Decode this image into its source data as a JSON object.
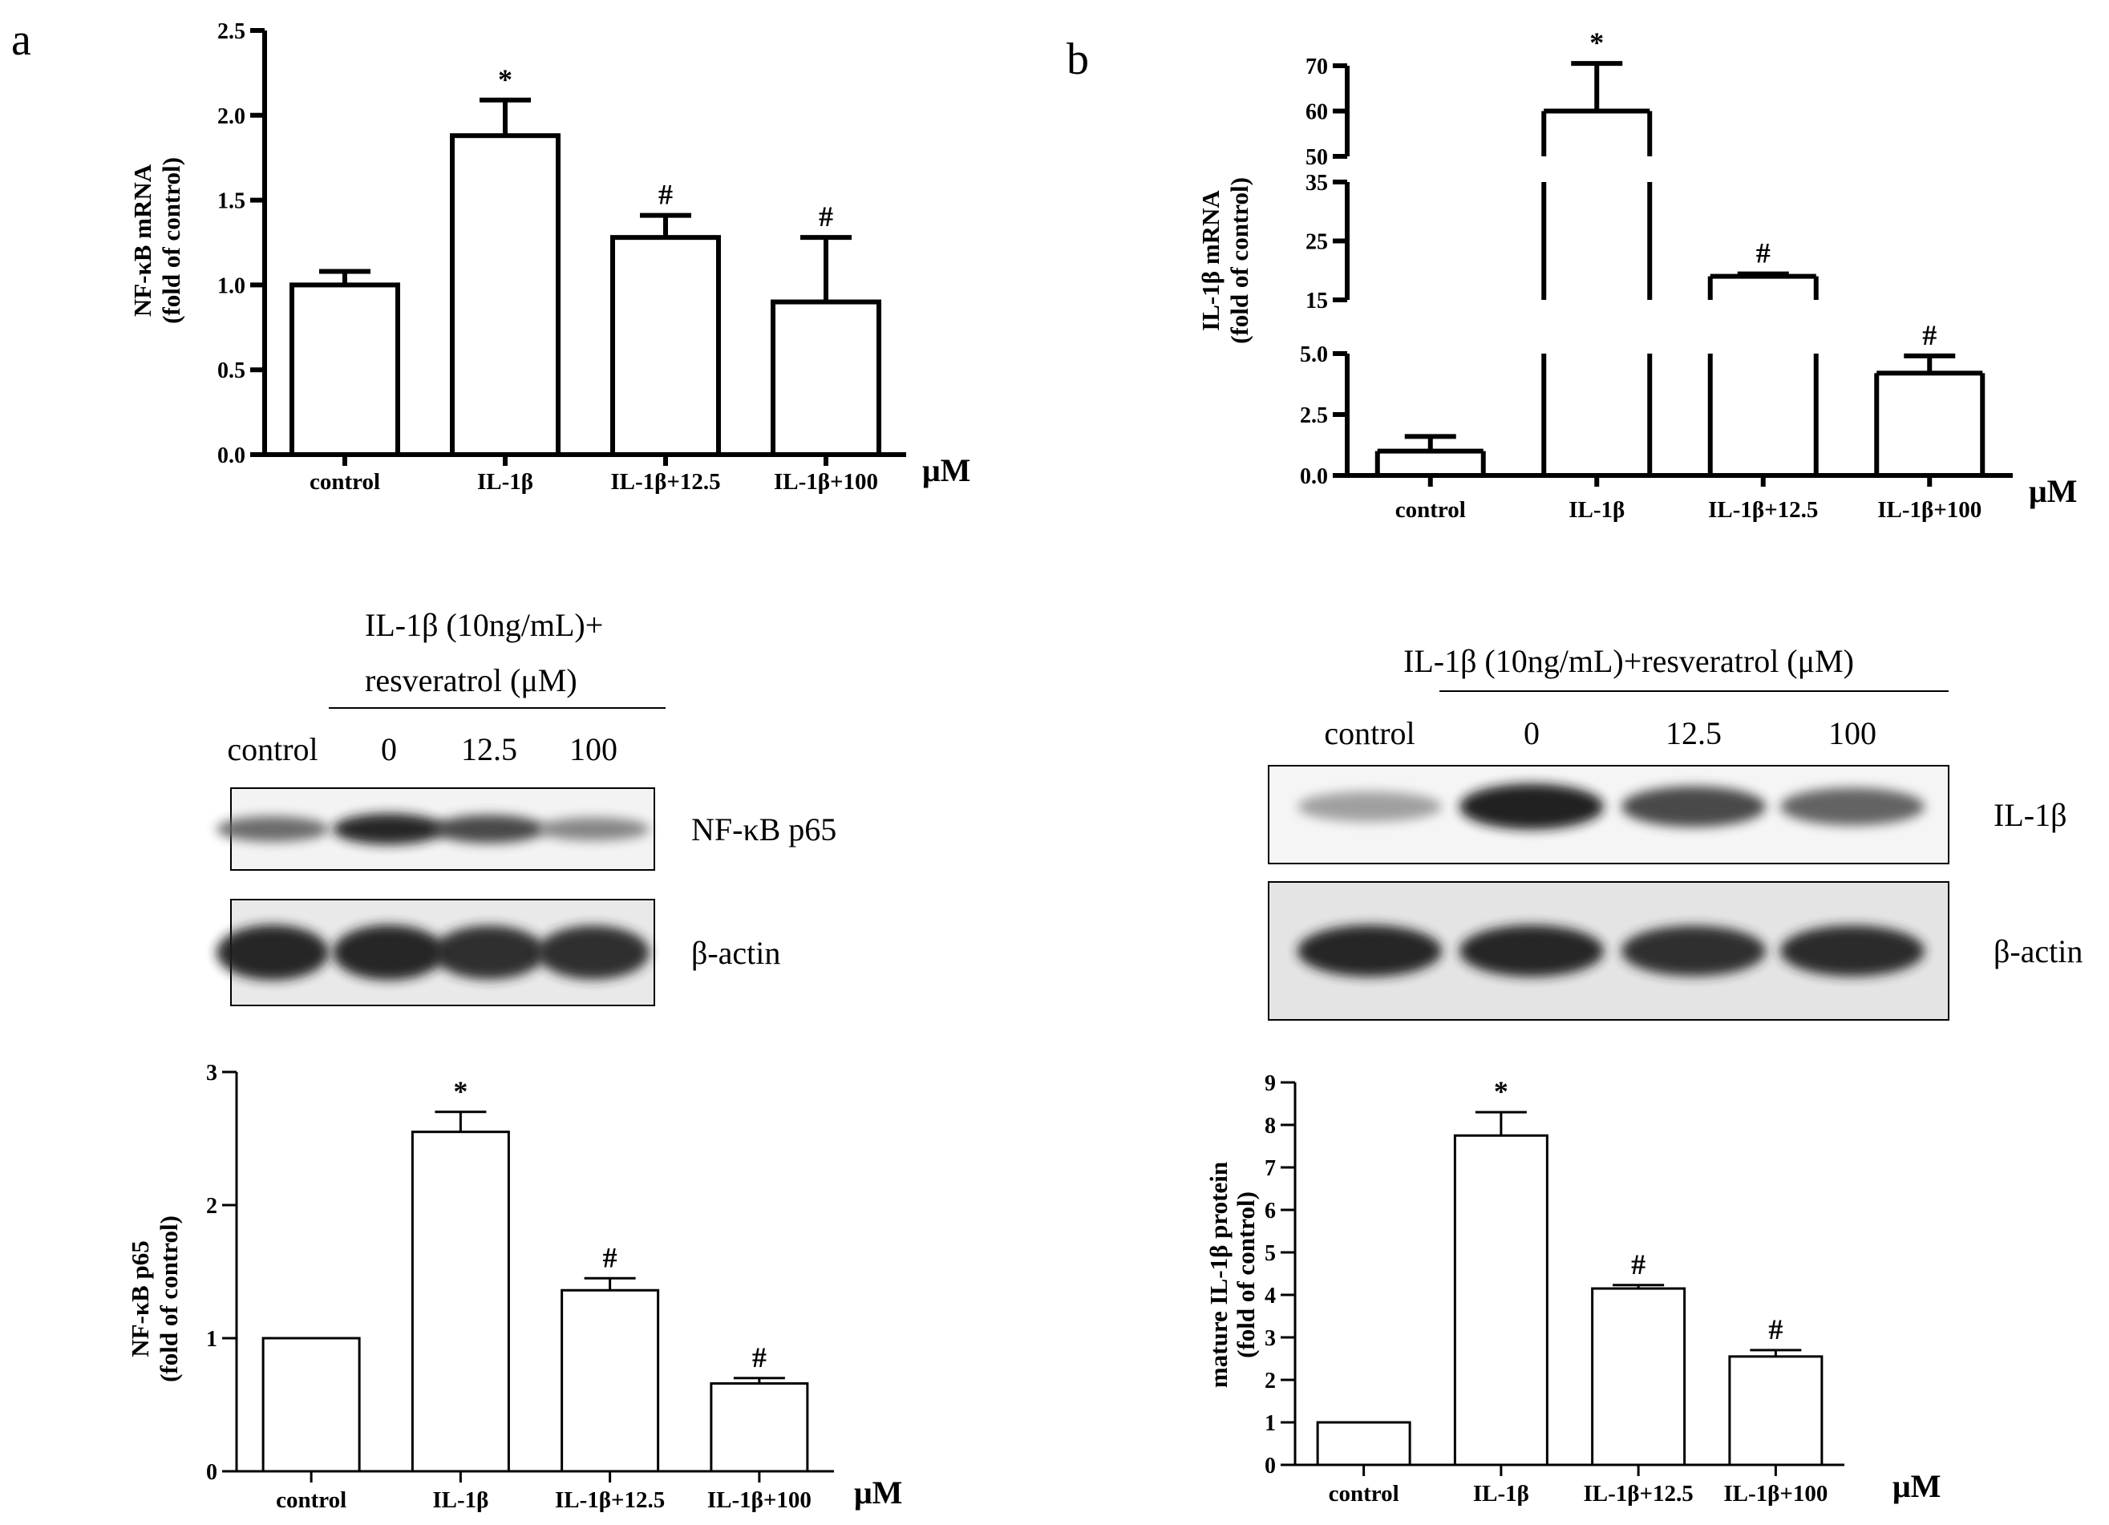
{
  "panel_labels": {
    "a": "a",
    "b": "b"
  },
  "blot_a": {
    "header_line1": "IL-1β (10ng/mL)+",
    "header_line2": "resveratrol (μM)",
    "lanes": [
      "control",
      "0",
      "12.5",
      "100"
    ],
    "bands": [
      {
        "label": "NF-κB p65",
        "intensity": [
          0.55,
          0.95,
          0.75,
          0.4
        ]
      },
      {
        "label": "β-actin",
        "intensity": [
          0.95,
          0.95,
          0.9,
          0.9
        ]
      }
    ]
  },
  "blot_b": {
    "header": "IL-1β (10ng/mL)+resveratrol (μM)",
    "lanes": [
      "control",
      "0",
      "12.5",
      "100"
    ],
    "bands": [
      {
        "label": "IL-1β",
        "intensity": [
          0.25,
          1.0,
          0.75,
          0.6
        ]
      },
      {
        "label": "β-actin",
        "intensity": [
          0.95,
          0.95,
          0.9,
          0.92
        ]
      }
    ]
  },
  "chart_data": [
    {
      "id": "a-mrna",
      "type": "bar",
      "categories": [
        "control",
        "IL-1β",
        "IL-1β+12.5",
        "IL-1β+100"
      ],
      "values": [
        1.0,
        1.88,
        1.28,
        0.9
      ],
      "errors": [
        0.08,
        0.21,
        0.13,
        0.38
      ],
      "annotations": [
        "",
        "*",
        "#",
        "#"
      ],
      "ylabel_line1": "NF-κB mRNA",
      "ylabel_line2": "(fold of control)",
      "unit": "μM",
      "ylim": [
        0,
        2.5
      ],
      "yticks": [
        "0.0",
        "0.5",
        "1.0",
        "1.5",
        "2.0",
        "2.5"
      ],
      "style": "thick"
    },
    {
      "id": "b-mrna",
      "type": "bar",
      "categories": [
        "control",
        "IL-1β",
        "IL-1β+12.5",
        "IL-1β+100"
      ],
      "values": [
        1.0,
        60.0,
        19.0,
        4.2
      ],
      "errors": [
        0.6,
        10.5,
        0.4,
        1.3
      ],
      "annotations": [
        "",
        "*",
        "#",
        "#"
      ],
      "ylabel_line1": "IL-1β mRNA",
      "ylabel_line2": "(fold of control)",
      "unit": "μM",
      "broken_axis": [
        [
          0,
          5.0
        ],
        [
          15,
          35
        ],
        [
          50,
          70
        ]
      ],
      "yticks": [
        "0.0",
        "2.5",
        "5.0",
        "15",
        "25",
        "35",
        "50",
        "60",
        "70"
      ],
      "style": "thick"
    },
    {
      "id": "a-protein",
      "type": "bar",
      "categories": [
        "control",
        "IL-1β",
        "IL-1β+12.5",
        "IL-1β+100"
      ],
      "values": [
        1.0,
        2.55,
        1.36,
        0.66
      ],
      "errors": [
        0.0,
        0.15,
        0.09,
        0.04
      ],
      "annotations": [
        "",
        "*",
        "#",
        "#"
      ],
      "ylabel_line1": "NF-κB p65",
      "ylabel_line2": "(fold of control)",
      "unit": "μM",
      "ylim": [
        0,
        3
      ],
      "yticks": [
        "0",
        "1",
        "2",
        "3"
      ],
      "style": "thin"
    },
    {
      "id": "b-protein",
      "type": "bar",
      "categories": [
        "control",
        "IL-1β",
        "IL-1β+12.5",
        "IL-1β+100"
      ],
      "values": [
        1.0,
        7.75,
        4.15,
        2.55
      ],
      "errors": [
        0.0,
        0.55,
        0.08,
        0.15
      ],
      "annotations": [
        "",
        "*",
        "#",
        "#"
      ],
      "ylabel_line1": "mature IL-1β protein",
      "ylabel_line2": "(fold of control)",
      "unit": "μM",
      "ylim": [
        0,
        9
      ],
      "yticks": [
        "0",
        "1",
        "2",
        "3",
        "4",
        "5",
        "6",
        "7",
        "8",
        "9"
      ],
      "style": "thin"
    }
  ]
}
